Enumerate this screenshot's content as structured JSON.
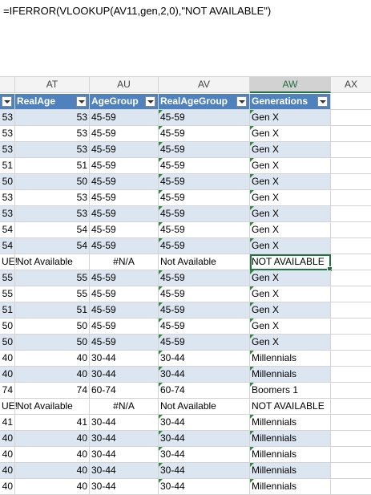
{
  "formula": "=IFERROR(VLOOKUP(AV11,gen,2,0),\"NOT AVAILABLE\")",
  "columns": [
    "AT",
    "AU",
    "AV",
    "AW",
    "AX"
  ],
  "headers": {
    "prev": "",
    "realage": "RealAge",
    "agegroup": "AgeGroup",
    "realagegroup": "RealAgeGroup",
    "generations": "Generations"
  },
  "rows": [
    {
      "prev": "53",
      "realage": "53",
      "agegroup": "45-59",
      "realagegroup": "45-59",
      "generations": "Gen X"
    },
    {
      "prev": "53",
      "realage": "53",
      "agegroup": "45-59",
      "realagegroup": "45-59",
      "generations": "Gen X"
    },
    {
      "prev": "53",
      "realage": "53",
      "agegroup": "45-59",
      "realagegroup": "45-59",
      "generations": "Gen X"
    },
    {
      "prev": "51",
      "realage": "51",
      "agegroup": "45-59",
      "realagegroup": "45-59",
      "generations": "Gen X"
    },
    {
      "prev": "50",
      "realage": "50",
      "agegroup": "45-59",
      "realagegroup": "45-59",
      "generations": "Gen X"
    },
    {
      "prev": "53",
      "realage": "53",
      "agegroup": "45-59",
      "realagegroup": "45-59",
      "generations": "Gen X"
    },
    {
      "prev": "53",
      "realage": "53",
      "agegroup": "45-59",
      "realagegroup": "45-59",
      "generations": "Gen X"
    },
    {
      "prev": "54",
      "realage": "54",
      "agegroup": "45-59",
      "realagegroup": "45-59",
      "generations": "Gen X"
    },
    {
      "prev": "54",
      "realage": "54",
      "agegroup": "45-59",
      "realagegroup": "45-59",
      "generations": "Gen X"
    },
    {
      "prev": "UE!",
      "realage": "Not Available",
      "agegroup": "#N/A",
      "realagegroup": "Not Available",
      "generations": "NOT AVAILABLE"
    },
    {
      "prev": "55",
      "realage": "55",
      "agegroup": "45-59",
      "realagegroup": "45-59",
      "generations": "Gen X"
    },
    {
      "prev": "55",
      "realage": "55",
      "agegroup": "45-59",
      "realagegroup": "45-59",
      "generations": "Gen X"
    },
    {
      "prev": "51",
      "realage": "51",
      "agegroup": "45-59",
      "realagegroup": "45-59",
      "generations": "Gen X"
    },
    {
      "prev": "50",
      "realage": "50",
      "agegroup": "45-59",
      "realagegroup": "45-59",
      "generations": "Gen X"
    },
    {
      "prev": "50",
      "realage": "50",
      "agegroup": "45-59",
      "realagegroup": "45-59",
      "generations": "Gen X"
    },
    {
      "prev": "40",
      "realage": "40",
      "agegroup": "30-44",
      "realagegroup": "30-44",
      "generations": "Millennials"
    },
    {
      "prev": "40",
      "realage": "40",
      "agegroup": "30-44",
      "realagegroup": "30-44",
      "generations": "Millennials"
    },
    {
      "prev": "74",
      "realage": "74",
      "agegroup": "60-74",
      "realagegroup": "60-74",
      "generations": "Boomers 1"
    },
    {
      "prev": "UE!",
      "realage": "Not Available",
      "agegroup": "#N/A",
      "realagegroup": "Not Available",
      "generations": "NOT AVAILABLE"
    },
    {
      "prev": "41",
      "realage": "41",
      "agegroup": "30-44",
      "realagegroup": "30-44",
      "generations": "Millennials"
    },
    {
      "prev": "40",
      "realage": "40",
      "agegroup": "30-44",
      "realagegroup": "30-44",
      "generations": "Millennials"
    },
    {
      "prev": "40",
      "realage": "40",
      "agegroup": "30-44",
      "realagegroup": "30-44",
      "generations": "Millennials"
    },
    {
      "prev": "40",
      "realage": "40",
      "agegroup": "30-44",
      "realagegroup": "30-44",
      "generations": "Millennials"
    },
    {
      "prev": "40",
      "realage": "40",
      "agegroup": "30-44",
      "realagegroup": "30-44",
      "generations": "Millennials"
    }
  ],
  "selected_column": "AW",
  "active_row": 9,
  "colors": {
    "table_header": "#4f81bd",
    "band": "#dce6f1",
    "selection": "#217346"
  }
}
